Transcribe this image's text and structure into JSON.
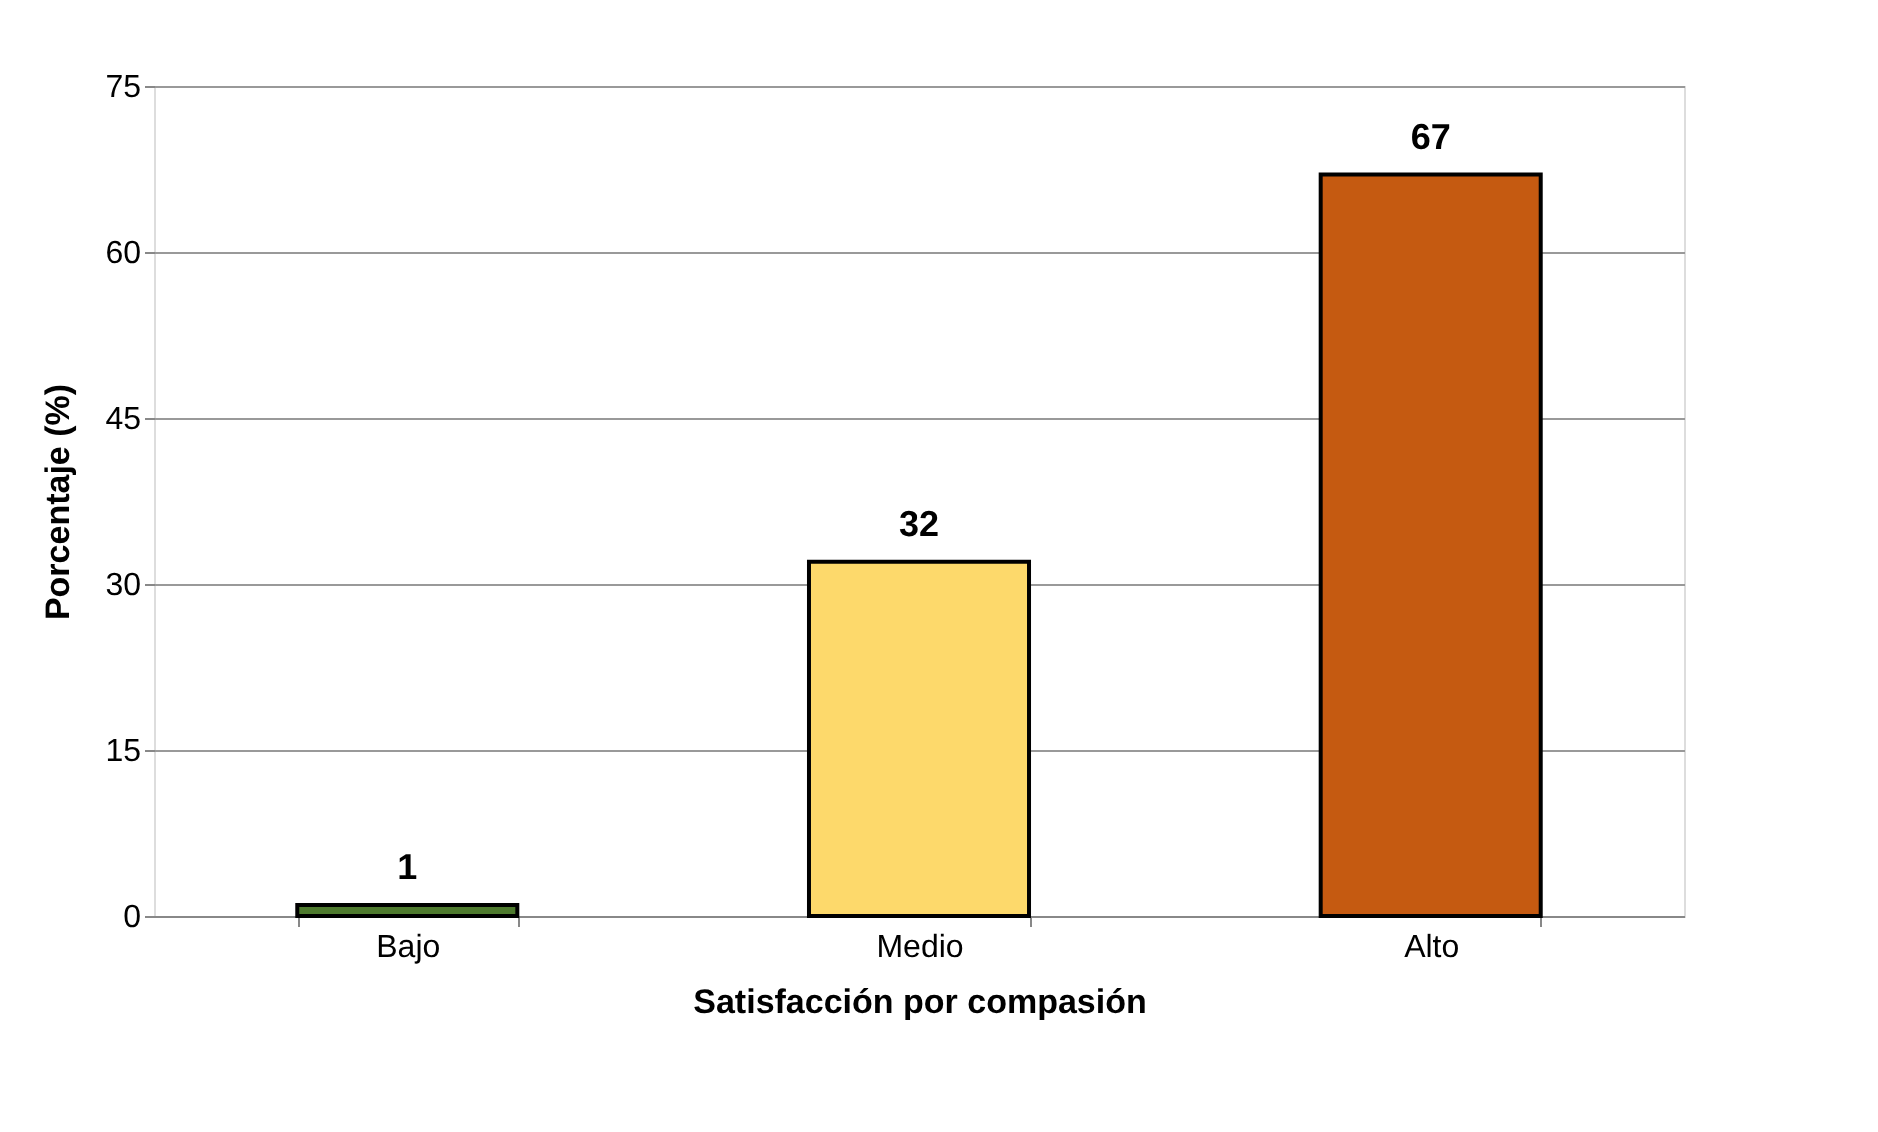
{
  "chart_data": {
    "type": "bar",
    "xlabel": "Satisfacción por compasión",
    "ylabel": "Porcentaje (%)",
    "categories": [
      "Bajo",
      "Medio",
      "Alto"
    ],
    "values": [
      1,
      32,
      67
    ],
    "colors": [
      "#4e7a2e",
      "#fdd96b",
      "#c55a11"
    ],
    "ylim": [
      0,
      75
    ],
    "yticks": [
      0,
      15,
      30,
      45,
      60,
      75
    ],
    "grid": "y",
    "data_labels": true
  }
}
